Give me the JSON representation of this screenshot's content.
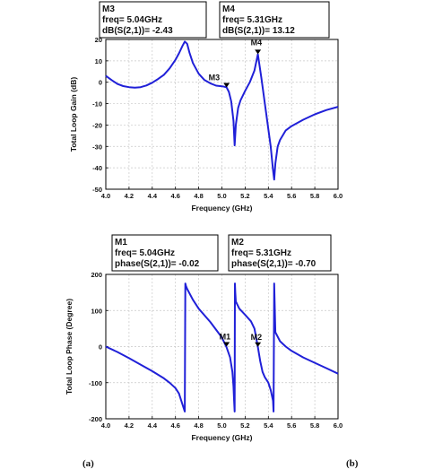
{
  "chart_data": [
    {
      "type": "line",
      "xlabel": "Frequency (GHz)",
      "ylabel": "Total Loop Gain (dB)",
      "xlim": [
        4.0,
        6.0
      ],
      "ylim": [
        -50,
        20
      ],
      "xticks": [
        "4.0",
        "4.2",
        "4.4",
        "4.6",
        "4.8",
        "5.0",
        "5.2",
        "5.4",
        "5.6",
        "5.8",
        "6.0"
      ],
      "yticks": [
        "20",
        "10",
        "0",
        "-10",
        "-20",
        "-30",
        "-40",
        "-50"
      ],
      "grid": true,
      "series": [
        {
          "color": "#2020d8",
          "x": [
            4.0,
            4.05,
            4.1,
            4.15,
            4.2,
            4.25,
            4.3,
            4.35,
            4.4,
            4.45,
            4.5,
            4.55,
            4.6,
            4.63,
            4.66,
            4.68,
            4.7,
            4.72,
            4.75,
            4.8,
            4.85,
            4.9,
            4.95,
            5.0,
            5.02,
            5.04,
            5.06,
            5.08,
            5.1,
            5.11,
            5.12,
            5.14,
            5.16,
            5.2,
            5.24,
            5.28,
            5.31,
            5.34,
            5.37,
            5.4,
            5.42,
            5.44,
            5.45,
            5.46,
            5.48,
            5.5,
            5.55,
            5.6,
            5.7,
            5.8,
            5.9,
            6.0
          ],
          "y": [
            3.0,
            1.0,
            -0.8,
            -1.8,
            -2.3,
            -2.5,
            -2.3,
            -1.5,
            -0.2,
            1.5,
            3.5,
            6.5,
            10.5,
            13.5,
            17.0,
            19.0,
            18.0,
            14.0,
            9.0,
            4.0,
            1.0,
            -0.5,
            -1.6,
            -1.9,
            -2.1,
            -2.4,
            -4.5,
            -9.0,
            -18.0,
            -29.5,
            -20.0,
            -12.0,
            -8.5,
            -4.0,
            0.0,
            5.5,
            13.1,
            2.0,
            -10.0,
            -22.0,
            -30.0,
            -41.0,
            -45.5,
            -38.0,
            -30.0,
            -27.0,
            -22.5,
            -20.5,
            -17.5,
            -15.0,
            -13.0,
            -11.5
          ]
        }
      ],
      "markers": [
        {
          "name": "M3",
          "x": 5.04,
          "y": -2.43
        },
        {
          "name": "M4",
          "x": 5.31,
          "y": 13.12
        }
      ],
      "marker_boxes": [
        {
          "lines": [
            "M3",
            "freq= 5.04GHz",
            "dB(S(2,1))= -2.43"
          ]
        },
        {
          "lines": [
            "M4",
            "freq= 5.31GHz",
            "dB(S(2,1))= 13.12"
          ]
        }
      ]
    },
    {
      "type": "line",
      "xlabel": "Frequency (GHz)",
      "ylabel": "Total Loop Phase (Degree)",
      "xlim": [
        4.0,
        6.0
      ],
      "ylim": [
        -200,
        200
      ],
      "xticks": [
        "4.0",
        "4.2",
        "4.4",
        "4.6",
        "4.8",
        "5.0",
        "5.2",
        "5.4",
        "5.6",
        "5.8",
        "6.0"
      ],
      "yticks": [
        "200",
        "100",
        "0",
        "-100",
        "-200"
      ],
      "grid": true,
      "series": [
        {
          "color": "#2020d8",
          "x": [
            4.0,
            4.1,
            4.2,
            4.3,
            4.4,
            4.5,
            4.55,
            4.6,
            4.63,
            4.65,
            4.67,
            4.68,
            4.685,
            4.69,
            4.7,
            4.75,
            4.8,
            4.9,
            5.0,
            5.04,
            5.07,
            5.09,
            5.1,
            5.105,
            5.11,
            5.112,
            5.115,
            5.12,
            5.15,
            5.2,
            5.25,
            5.28,
            5.31,
            5.33,
            5.35,
            5.37,
            5.39,
            5.4,
            5.42,
            5.44,
            5.445,
            5.45,
            5.46,
            5.5,
            5.55,
            5.6,
            5.7,
            5.8,
            5.9,
            6.0
          ],
          "y": [
            0,
            -15,
            -32,
            -50,
            -68,
            -88,
            -100,
            -115,
            -130,
            -150,
            -170,
            -180,
            175,
            168,
            160,
            130,
            105,
            68,
            25,
            -2,
            -30,
            -70,
            -110,
            -150,
            -180,
            175,
            150,
            125,
            105,
            88,
            70,
            50,
            -1,
            -40,
            -70,
            -85,
            -95,
            -100,
            -120,
            -150,
            -180,
            175,
            40,
            15,
            0,
            -12,
            -30,
            -45,
            -60,
            -75
          ]
        }
      ],
      "markers": [
        {
          "name": "M1",
          "x": 5.04,
          "y": -0.02
        },
        {
          "name": "M2",
          "x": 5.31,
          "y": -0.7
        }
      ],
      "marker_boxes": [
        {
          "lines": [
            "M1",
            "freq= 5.04GHz",
            "phase(S(2,1))= -0.02"
          ]
        },
        {
          "lines": [
            "M2",
            "freq= 5.31GHz",
            "phase(S(2,1))= -0.70"
          ]
        }
      ]
    }
  ],
  "panel_labels": [
    "(a)",
    "(b)"
  ]
}
